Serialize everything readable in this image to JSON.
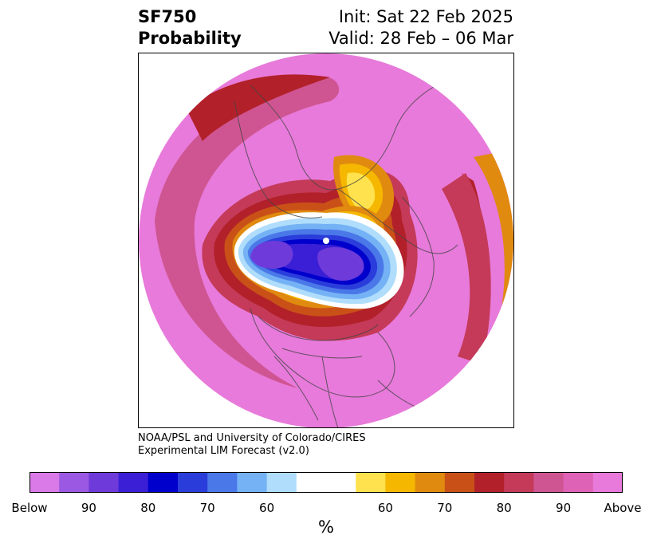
{
  "title": {
    "variable": "SF750",
    "subtitle": "Probability",
    "init": "Init: Sat 22 Feb 2025",
    "valid": "Valid: 28 Feb – 06 Mar"
  },
  "credit": {
    "line1": "NOAA/PSL and University of Colorado/CIRES",
    "line2": "Experimental LIM Forecast (v2.0)"
  },
  "colorbar": {
    "colors": [
      "#d97ae8",
      "#9b59e3",
      "#6e3ad9",
      "#3a1fd6",
      "#0000cc",
      "#2a3ddb",
      "#4a78e8",
      "#74b2f5",
      "#b0ddfb",
      "#ffffff",
      "#ffffff",
      "#ffe24d",
      "#f5b700",
      "#e08a10",
      "#c95118",
      "#b2202a",
      "#c43a58",
      "#cf5592",
      "#de63b6",
      "#e77ada"
    ],
    "ticks": [
      "Below",
      "90",
      "80",
      "70",
      "60",
      "60",
      "70",
      "80",
      "90",
      "Above"
    ],
    "label": "%"
  },
  "map": {
    "projection": "polar-stereographic-north",
    "background_color": "#e77ada",
    "border_color": "#444444"
  }
}
